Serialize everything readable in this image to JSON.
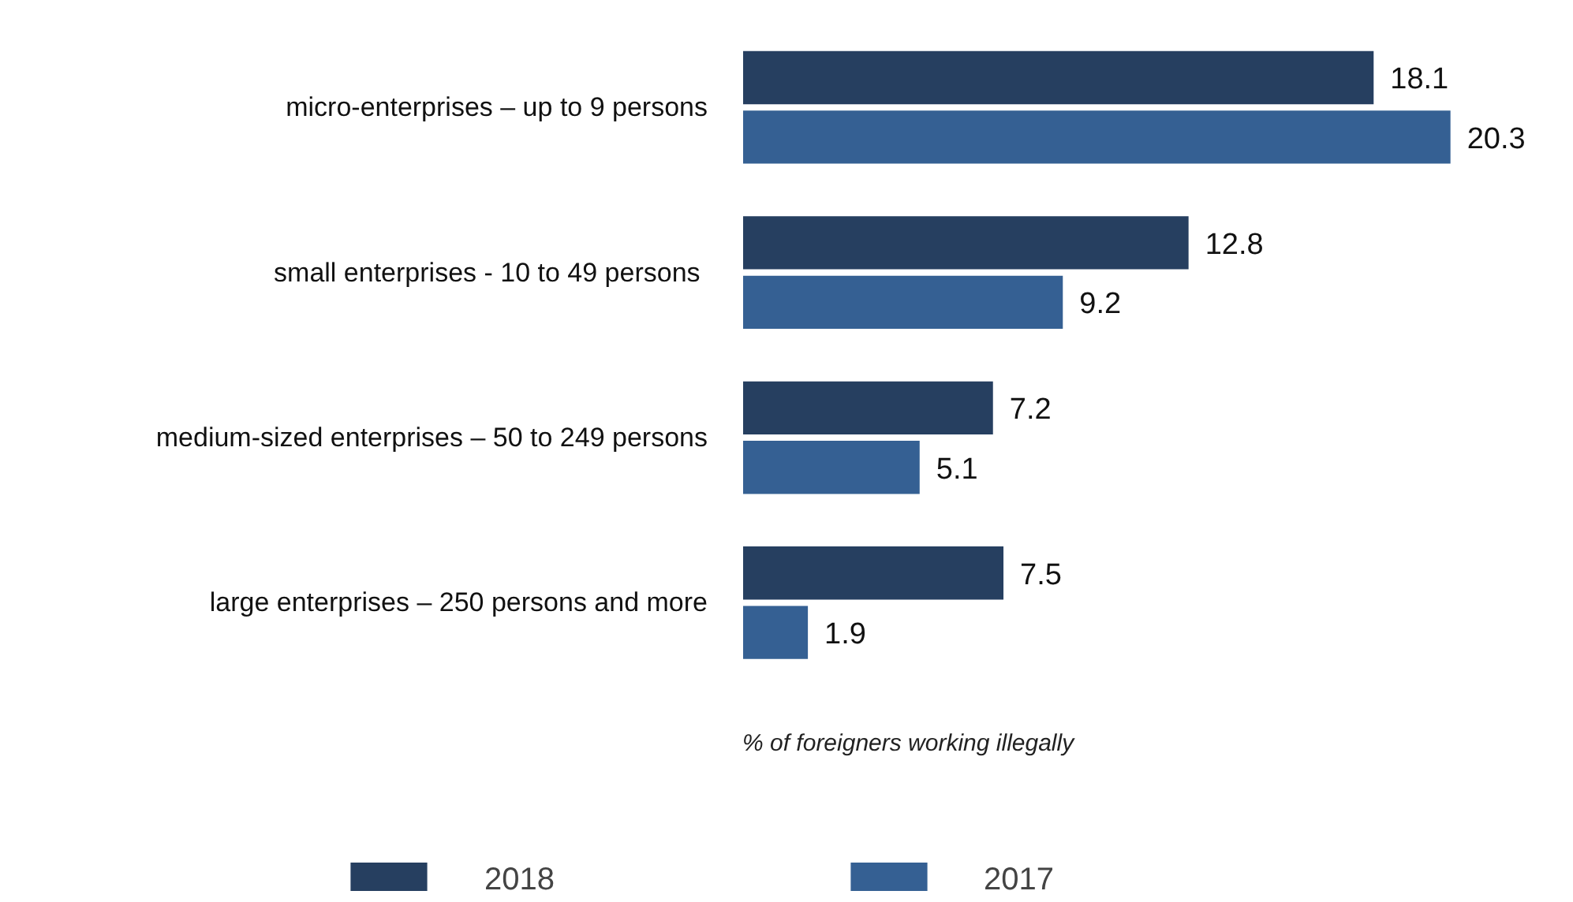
{
  "chart_data": {
    "type": "bar",
    "orientation": "horizontal",
    "xlabel": "% of foreigners working illegally",
    "categories": [
      "micro-enterprises – up to 9 persons",
      "small enterprises  - 10 to 49 persons",
      "medium-sized enterprises – 50 to 249 persons",
      "large enterprises – 250 persons and more"
    ],
    "series": [
      {
        "name": "2018",
        "color": "#263f60",
        "values": [
          18.1,
          12.8,
          7.2,
          7.5
        ]
      },
      {
        "name": "2017",
        "color": "#356093",
        "values": [
          20.3,
          9.2,
          5.1,
          1.9
        ]
      }
    ],
    "data_labels": true,
    "legend": "bottom",
    "grid": false
  }
}
